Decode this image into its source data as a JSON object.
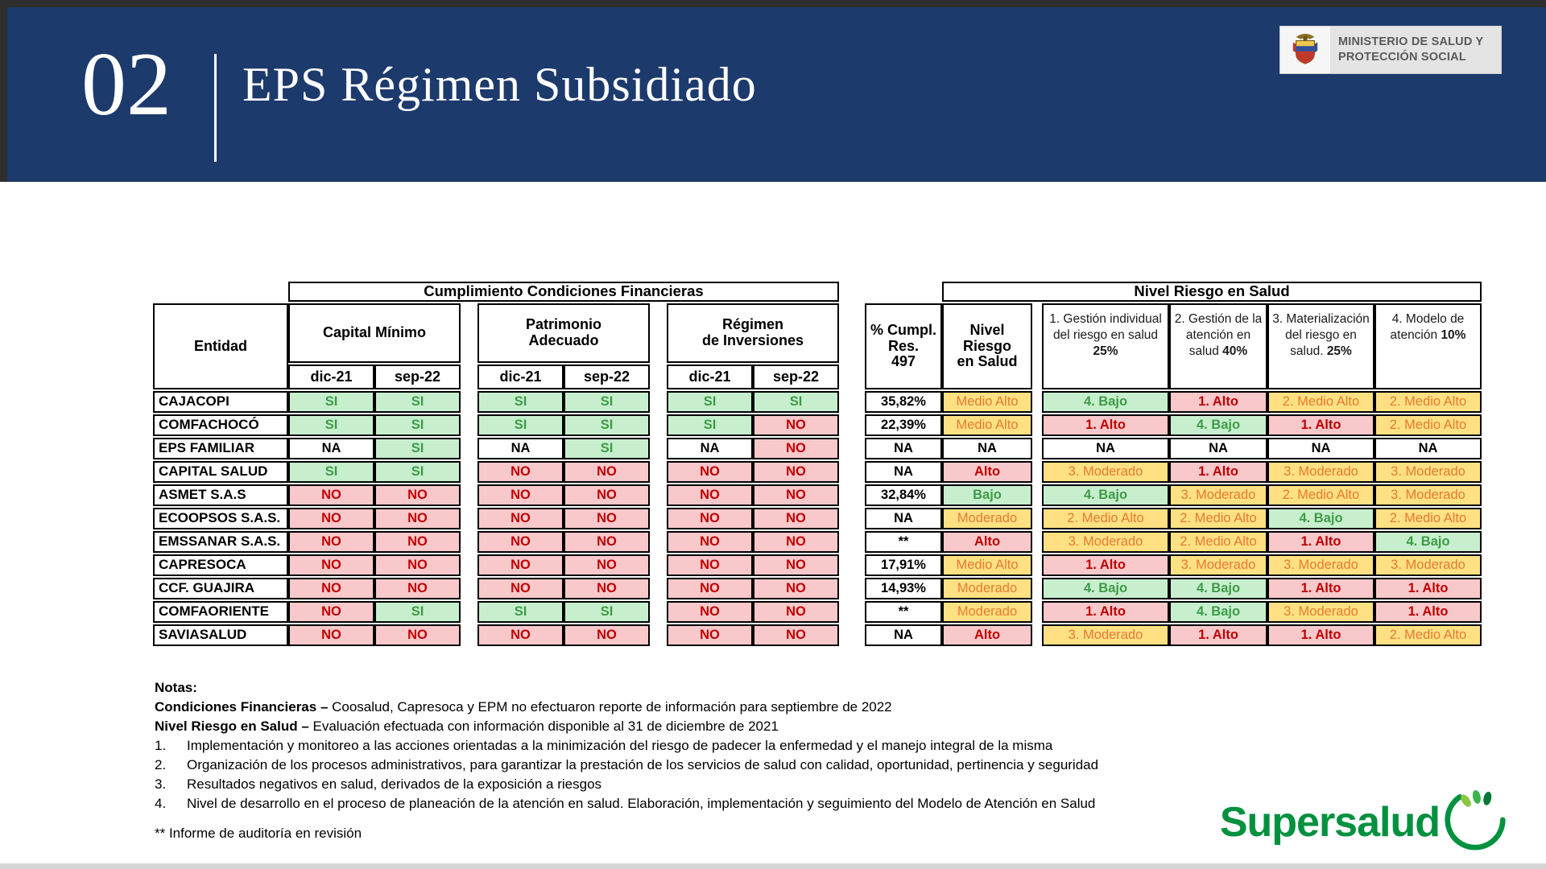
{
  "theme": {
    "header_bg": "#1D3A6C",
    "good_bg": "#C7EFCE",
    "good_text": "#3E9B45",
    "bad_bg": "#F8C8CB",
    "bad_text": "#C00000",
    "warn_bg": "#FFE183",
    "warn_text": "#E97A2E",
    "brand_green": "#00913F"
  },
  "page": {
    "slide_number": "02",
    "title": "EPS Régimen Subsidiado"
  },
  "ministry": {
    "line1": "MINISTERIO DE SALUD Y",
    "line2": "PROTECCIÓN SOCIAL"
  },
  "table": {
    "group_headers": {
      "financial": "Cumplimiento Condiciones Financieras",
      "health": "Nivel Riesgo en Salud"
    },
    "col_headers": {
      "entity": "Entidad",
      "capital": "Capital Mínimo",
      "patrimonio": "Patrimonio\nAdecuado",
      "regimen": "Régimen\nde Inversiones",
      "period1": "dic-21",
      "period2": "sep-22",
      "cumpl": "% Cumpl. Res.\n497",
      "nivel": "Nivel Riesgo\nen Salud"
    },
    "component_headers": [
      {
        "text": "1. Gestión individual del riesgo en salud",
        "pct": "25%"
      },
      {
        "text": "2. Gestión de la atención en salud",
        "pct": "40%"
      },
      {
        "text": "3. Materialización del riesgo en salud.",
        "pct": "25%"
      },
      {
        "text": "4. Modelo de atención",
        "pct": "10%"
      }
    ],
    "rows": [
      {
        "entity": "CAJACOPI",
        "capital": [
          "SI",
          "SI"
        ],
        "patrimonio": [
          "SI",
          "SI"
        ],
        "regimen": [
          "SI",
          "SI"
        ],
        "cumpl": "35,82%",
        "nivel": "Medio Alto",
        "components": [
          "4. Bajo",
          "1. Alto",
          "2. Medio Alto",
          "2. Medio Alto"
        ]
      },
      {
        "entity": "COMFACHOCÓ",
        "capital": [
          "SI",
          "SI"
        ],
        "patrimonio": [
          "SI",
          "SI"
        ],
        "regimen": [
          "SI",
          "NO"
        ],
        "cumpl": "22,39%",
        "nivel": "Medio Alto",
        "components": [
          "1. Alto",
          "4. Bajo",
          "1. Alto",
          "2. Medio Alto"
        ]
      },
      {
        "entity": "EPS FAMILIAR",
        "capital": [
          "NA",
          "SI"
        ],
        "patrimonio": [
          "NA",
          "SI"
        ],
        "regimen": [
          "NA",
          "NO"
        ],
        "cumpl": "NA",
        "nivel": "NA",
        "components": [
          "NA",
          "NA",
          "NA",
          "NA"
        ]
      },
      {
        "entity": "CAPITAL SALUD",
        "capital": [
          "SI",
          "SI"
        ],
        "patrimonio": [
          "NO",
          "NO"
        ],
        "regimen": [
          "NO",
          "NO"
        ],
        "cumpl": "NA",
        "nivel": "Alto",
        "components": [
          "3. Moderado",
          "1. Alto",
          "3. Moderado",
          "3. Moderado"
        ]
      },
      {
        "entity": "ASMET S.A.S",
        "capital": [
          "NO",
          "NO"
        ],
        "patrimonio": [
          "NO",
          "NO"
        ],
        "regimen": [
          "NO",
          "NO"
        ],
        "cumpl": "32,84%",
        "nivel": "Bajo",
        "components": [
          "4. Bajo",
          "3. Moderado",
          "2. Medio Alto",
          "3. Moderado"
        ]
      },
      {
        "entity": "ECOOPSOS S.A.S.",
        "capital": [
          "NO",
          "NO"
        ],
        "patrimonio": [
          "NO",
          "NO"
        ],
        "regimen": [
          "NO",
          "NO"
        ],
        "cumpl": "NA",
        "nivel": "Moderado",
        "components": [
          "2. Medio Alto",
          "2. Medio Alto",
          "4. Bajo",
          "2. Medio Alto"
        ]
      },
      {
        "entity": "EMSSANAR S.A.S.",
        "capital": [
          "NO",
          "NO"
        ],
        "patrimonio": [
          "NO",
          "NO"
        ],
        "regimen": [
          "NO",
          "NO"
        ],
        "cumpl": "**",
        "nivel": "Alto",
        "components": [
          "3. Moderado",
          "2. Medio Alto",
          "1. Alto",
          "4. Bajo"
        ]
      },
      {
        "entity": "CAPRESOCA",
        "capital": [
          "NO",
          "NO"
        ],
        "patrimonio": [
          "NO",
          "NO"
        ],
        "regimen": [
          "NO",
          "NO"
        ],
        "cumpl": "17,91%",
        "nivel": "Medio Alto",
        "components": [
          "1. Alto",
          "3. Moderado",
          "3. Moderado",
          "3. Moderado"
        ]
      },
      {
        "entity": "CCF. GUAJIRA",
        "capital": [
          "NO",
          "NO"
        ],
        "patrimonio": [
          "NO",
          "NO"
        ],
        "regimen": [
          "NO",
          "NO"
        ],
        "cumpl": "14,93%",
        "nivel": "Moderado",
        "components": [
          "4. Bajo",
          "4. Bajo",
          "1. Alto",
          "1. Alto"
        ]
      },
      {
        "entity": "COMFAORIENTE",
        "capital": [
          "NO",
          "SI"
        ],
        "patrimonio": [
          "SI",
          "SI"
        ],
        "regimen": [
          "NO",
          "NO"
        ],
        "cumpl": "**",
        "nivel": "Moderado",
        "components": [
          "1. Alto",
          "4. Bajo",
          "3. Moderado",
          "1. Alto"
        ]
      },
      {
        "entity": "SAVIASALUD",
        "capital": [
          "NO",
          "NO"
        ],
        "patrimonio": [
          "NO",
          "NO"
        ],
        "regimen": [
          "NO",
          "NO"
        ],
        "cumpl": "NA",
        "nivel": "Alto",
        "components": [
          "3. Moderado",
          "1. Alto",
          "1. Alto",
          "2. Medio Alto"
        ]
      }
    ]
  },
  "notes": {
    "label": "Notas:",
    "lead_lines": [
      {
        "bold": "Condiciones Financieras –",
        "text": "Coosalud, Capresoca y EPM no efectuaron reporte de información para septiembre de 2022"
      },
      {
        "bold": "Nivel Riesgo en Salud –",
        "text": "Evaluación efectuada con información disponible al 31 de diciembre de 2021"
      }
    ],
    "numbered": [
      "Implementación y monitoreo a las acciones orientadas a la minimización del riesgo de padecer la enfermedad y el manejo integral de la misma",
      "Organización de los procesos administrativos, para garantizar la prestación de los servicios de salud con calidad, oportunidad, pertinencia y seguridad",
      "Resultados negativos en salud, derivados de la exposición a riesgos",
      "Nivel de desarrollo en el proceso de planeación de la atención en salud. Elaboración, implementación y seguimiento del Modelo de Atención en Salud"
    ],
    "footnote": "** Informe de auditoría en revisión"
  },
  "supersalud": {
    "label": "Supersalud"
  }
}
